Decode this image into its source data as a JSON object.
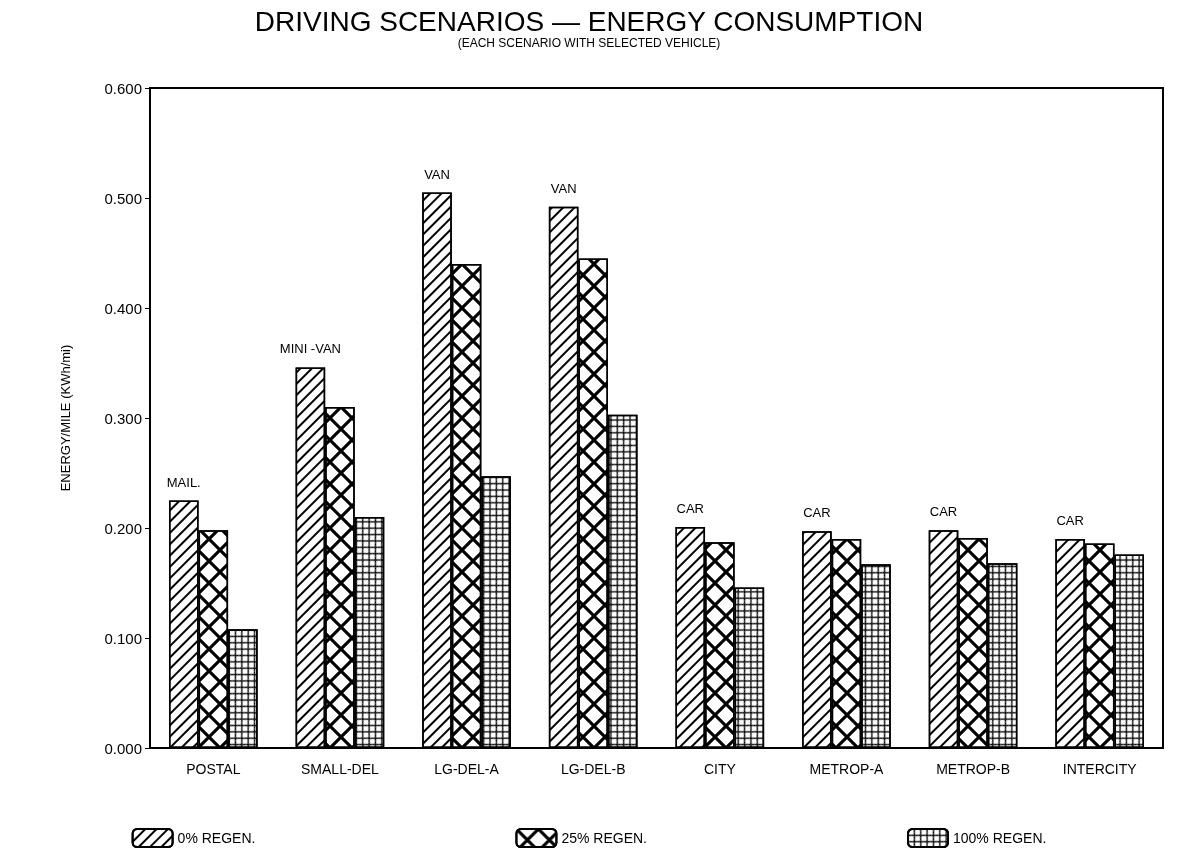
{
  "chart_data": {
    "type": "bar",
    "title": "DRIVING SCENARIOS — ENERGY CONSUMPTION",
    "subtitle": "(EACH SCENARIO WITH SELECTED VEHICLE)",
    "ylabel": "ENERGY/MILE (KWh/mi)",
    "categories": [
      "POSTAL",
      "SMALL-DEL",
      "LG-DEL-A",
      "LG-DEL-B",
      "CITY",
      "METROP-A",
      "METROP-B",
      "INTERCITY"
    ],
    "series": [
      {
        "name": "0% REGEN.",
        "color": "#ffffff",
        "values": [
          0.225,
          0.346,
          0.505,
          0.492,
          0.201,
          0.197,
          0.198,
          0.19
        ]
      },
      {
        "name": "25% REGEN.",
        "color": "#ffffff",
        "values": [
          0.198,
          0.31,
          0.44,
          0.445,
          0.187,
          0.19,
          0.191,
          0.186
        ]
      },
      {
        "name": "100% REGEN.",
        "color": "#ffffff",
        "values": [
          0.108,
          0.21,
          0.247,
          0.303,
          0.146,
          0.167,
          0.168,
          0.176
        ]
      }
    ],
    "ylim": [
      0,
      0.6
    ],
    "yticks": [
      {
        "value": 0,
        "label": "0.000"
      },
      {
        "value": 0.1,
        "label": "0.100"
      },
      {
        "value": 0.2,
        "label": "0.200"
      },
      {
        "value": 0.3,
        "label": "0.300"
      },
      {
        "value": 0.4,
        "label": "0.400"
      },
      {
        "value": 0.5,
        "label": "0.500"
      },
      {
        "value": 0.6,
        "label": "0.600"
      }
    ],
    "annotations": [
      "MAIL.",
      "MINI -VAN",
      "VAN",
      "VAN",
      "CAR",
      "CAR",
      "CAR",
      "CAR"
    ],
    "grid": false,
    "legend": "bottom"
  }
}
